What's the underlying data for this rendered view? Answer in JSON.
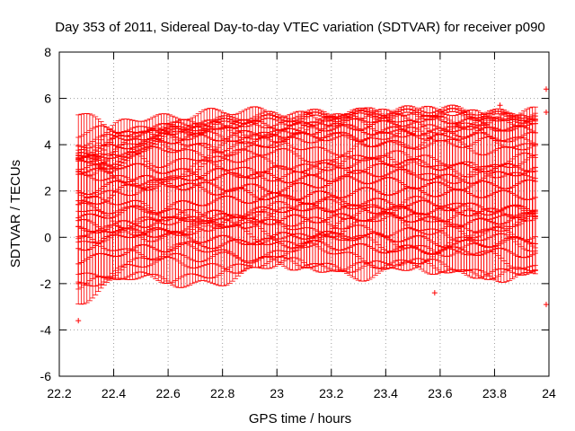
{
  "chart_data": {
    "type": "scatter",
    "subtype": "errorbar",
    "title": "Day 353 of 2011, Sidereal Day-to-day VTEC variation (SDTVAR) for receiver p090",
    "xlabel": "GPS time / hours",
    "ylabel": "SDTVAR / TECUs",
    "xlim": [
      22.2,
      24
    ],
    "ylim": [
      -6,
      8
    ],
    "xticks": [
      22.2,
      22.4,
      22.6,
      22.8,
      23,
      23.2,
      23.4,
      23.6,
      23.8,
      24
    ],
    "xtick_labels": [
      "22.2",
      "22.4",
      "22.6",
      "22.8",
      "23",
      "23.2",
      "23.4",
      "23.6",
      "23.8",
      "24"
    ],
    "yticks": [
      -6,
      -4,
      -2,
      0,
      2,
      4,
      6,
      8
    ],
    "ytick_labels": [
      "-6",
      "-4",
      "-2",
      "0",
      "2",
      "4",
      "6",
      "8"
    ],
    "grid": true,
    "legend": "none",
    "color": "#ff0000",
    "x_start": 22.27,
    "x_end": 23.95,
    "x_step": 0.0105,
    "series": [
      {
        "name": "s1",
        "knots": [
          [
            22.27,
            3.5
          ],
          [
            22.4,
            3.1
          ],
          [
            22.6,
            4.5
          ],
          [
            22.9,
            5.1
          ],
          [
            23.3,
            5.3
          ],
          [
            23.6,
            5.4
          ],
          [
            23.95,
            5.2
          ]
        ],
        "err": 0.15
      },
      {
        "name": "s2",
        "knots": [
          [
            22.27,
            3.3
          ],
          [
            22.5,
            4.7
          ],
          [
            22.8,
            4.9
          ],
          [
            23.1,
            4.8
          ],
          [
            23.4,
            4.6
          ],
          [
            23.7,
            4.5
          ],
          [
            23.95,
            4.9
          ]
        ],
        "err": 0.6
      },
      {
        "name": "s3",
        "knots": [
          [
            22.27,
            3.6
          ],
          [
            22.45,
            4.0
          ],
          [
            22.7,
            4.3
          ],
          [
            23.0,
            4.5
          ],
          [
            23.3,
            4.8
          ],
          [
            23.6,
            5.1
          ],
          [
            23.95,
            4.6
          ]
        ],
        "err": 0.5
      },
      {
        "name": "s4",
        "knots": [
          [
            22.27,
            3.4
          ],
          [
            22.5,
            3.0
          ],
          [
            22.8,
            2.6
          ],
          [
            23.1,
            3.0
          ],
          [
            23.4,
            3.3
          ],
          [
            23.7,
            3.0
          ],
          [
            23.95,
            3.0
          ]
        ],
        "err": 2.2
      },
      {
        "name": "s5",
        "knots": [
          [
            22.27,
            1.4
          ],
          [
            22.5,
            2.2
          ],
          [
            22.8,
            2.8
          ],
          [
            23.1,
            2.5
          ],
          [
            23.4,
            2.8
          ],
          [
            23.7,
            2.5
          ],
          [
            23.95,
            2.9
          ]
        ],
        "err": 2.4
      },
      {
        "name": "s6",
        "knots": [
          [
            22.27,
            2.0
          ],
          [
            22.5,
            2.4
          ],
          [
            22.7,
            2.2
          ],
          [
            23.0,
            2.1
          ],
          [
            23.3,
            2.5
          ],
          [
            23.6,
            2.2
          ],
          [
            23.95,
            2.3
          ]
        ],
        "err": 2.2
      },
      {
        "name": "s7",
        "knots": [
          [
            22.27,
            2.9
          ],
          [
            22.5,
            2.5
          ],
          [
            22.8,
            2.0
          ],
          [
            23.1,
            1.6
          ],
          [
            23.4,
            1.5
          ],
          [
            23.7,
            1.3
          ],
          [
            23.95,
            1.2
          ]
        ],
        "err": 2.0
      },
      {
        "name": "s8",
        "knots": [
          [
            22.27,
            0.8
          ],
          [
            22.5,
            1.2
          ],
          [
            22.8,
            1.6
          ],
          [
            23.1,
            1.8
          ],
          [
            23.4,
            2.0
          ],
          [
            23.7,
            1.9
          ],
          [
            23.95,
            1.8
          ]
        ],
        "err": 2.6
      },
      {
        "name": "s9",
        "knots": [
          [
            22.27,
            0.3
          ],
          [
            22.5,
            0.6
          ],
          [
            22.8,
            1.0
          ],
          [
            23.1,
            1.3
          ],
          [
            23.4,
            1.2
          ],
          [
            23.7,
            1.1
          ],
          [
            23.95,
            1.0
          ]
        ],
        "err": 2.4
      },
      {
        "name": "s10",
        "knots": [
          [
            22.27,
            -0.4
          ],
          [
            22.5,
            0.2
          ],
          [
            22.8,
            0.6
          ],
          [
            23.1,
            0.8
          ],
          [
            23.4,
            0.9
          ],
          [
            23.7,
            0.6
          ],
          [
            23.95,
            0.9
          ]
        ],
        "err": 2.6
      },
      {
        "name": "s11",
        "knots": [
          [
            22.27,
            -1.0
          ],
          [
            22.5,
            -0.5
          ],
          [
            22.8,
            -0.3
          ],
          [
            23.1,
            0.1
          ],
          [
            23.4,
            0.0
          ],
          [
            23.7,
            -0.3
          ],
          [
            23.95,
            -0.1
          ]
        ],
        "err": 1.4
      },
      {
        "name": "s12",
        "knots": [
          [
            22.27,
            0.6
          ],
          [
            22.5,
            0.2
          ],
          [
            22.8,
            -0.1
          ],
          [
            23.1,
            -0.3
          ],
          [
            23.4,
            -0.5
          ],
          [
            23.7,
            -0.6
          ],
          [
            23.95,
            -0.7
          ]
        ],
        "err": 1.0
      }
    ],
    "isolated_points": [
      {
        "x": 22.27,
        "y": -2.0
      },
      {
        "x": 22.27,
        "y": -3.6
      },
      {
        "x": 23.58,
        "y": -2.4
      },
      {
        "x": 23.82,
        "y": 5.7
      },
      {
        "x": 23.99,
        "y": 6.4
      },
      {
        "x": 23.99,
        "y": 5.4
      },
      {
        "x": 23.99,
        "y": -2.9
      }
    ]
  }
}
